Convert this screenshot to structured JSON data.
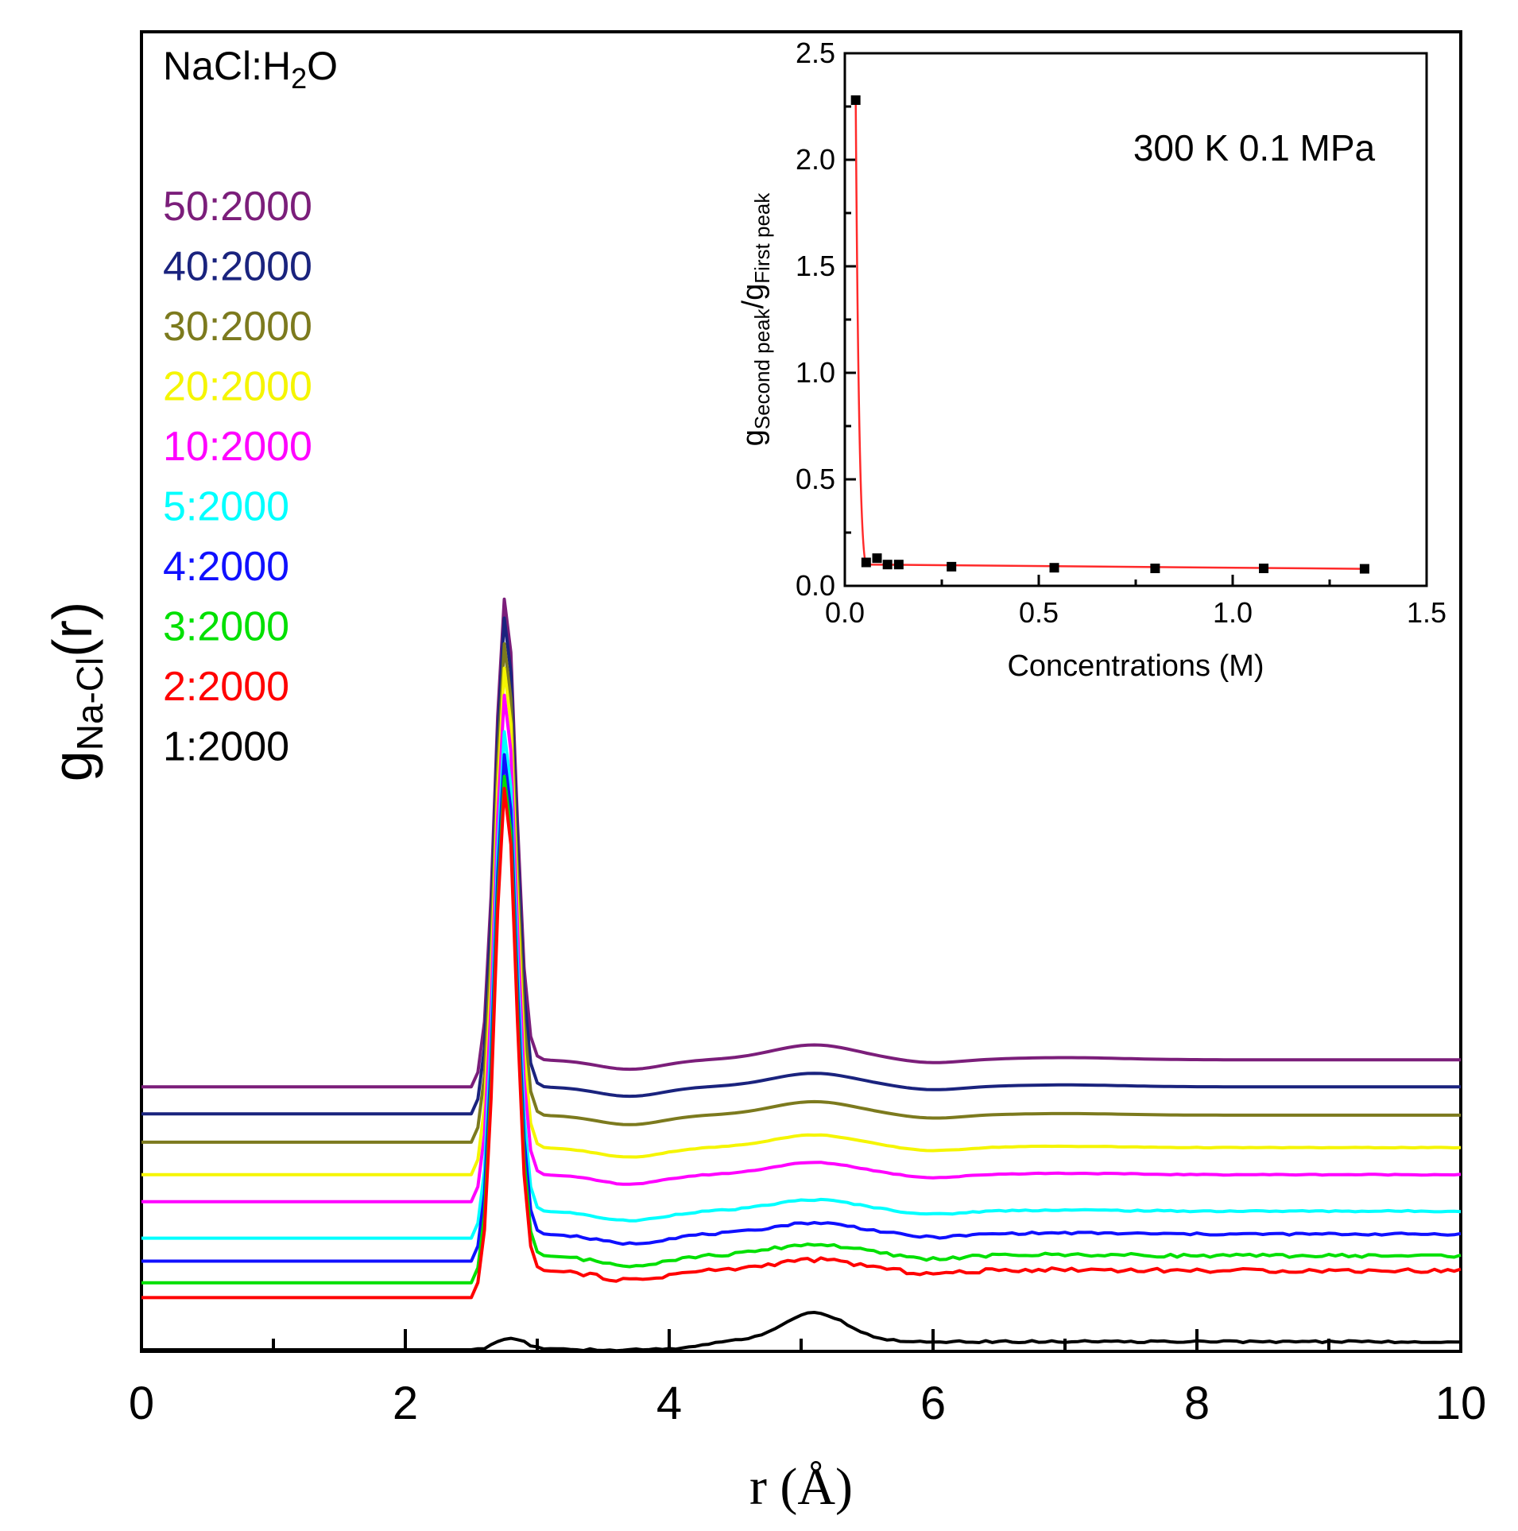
{
  "chart_data": [
    {
      "type": "line",
      "title": "",
      "xlabel": "r (Å)",
      "ylabel": {
        "main": "g",
        "sub": "Na-Cl",
        "tail": "(r)"
      },
      "xlim": [
        0,
        10
      ],
      "x_ticks": [
        "0",
        "2",
        "4",
        "6",
        "8",
        "10"
      ],
      "y_ticks_labeled": false,
      "stacked_offset_curves": true,
      "grid": false,
      "legend": {
        "title": {
          "pre": "NaCl:H",
          "sub": "2",
          "post": "O"
        },
        "placement": "top-left",
        "order": [
          "50:2000",
          "40:2000",
          "30:2000",
          "20:2000",
          "10:2000",
          "5:2000",
          "4:2000",
          "3:2000",
          "2:2000",
          "1:2000"
        ]
      },
      "series": [
        {
          "name": "50:2000",
          "color": "#7b1e7a",
          "offset": 9.2,
          "peak1": 17.2,
          "peak2": 1.55,
          "peak3": 1.08,
          "tail": 1.0,
          "noise": 0.0
        },
        {
          "name": "40:2000",
          "color": "#1a237e",
          "offset": 8.2,
          "peak1": 17.5,
          "peak2": 1.5,
          "peak3": 1.07,
          "tail": 1.0,
          "noise": 0.0
        },
        {
          "name": "30:2000",
          "color": "#7c7a1e",
          "offset": 7.15,
          "peak1": 17.6,
          "peak2": 1.5,
          "peak3": 1.06,
          "tail": 1.0,
          "noise": 0.0
        },
        {
          "name": "20:2000",
          "color": "#f5f500",
          "offset": 5.95,
          "peak1": 17.9,
          "peak2": 1.47,
          "peak3": 1.05,
          "tail": 1.0,
          "noise": 0.02
        },
        {
          "name": "10:2000",
          "color": "#ff00ff",
          "offset": 4.95,
          "peak1": 17.9,
          "peak2": 1.45,
          "peak3": 1.05,
          "tail": 1.0,
          "noise": 0.03
        },
        {
          "name": "5:2000",
          "color": "#00ffff",
          "offset": 3.6,
          "peak1": 17.9,
          "peak2": 1.42,
          "peak3": 1.04,
          "tail": 1.0,
          "noise": 0.05
        },
        {
          "name": "4:2000",
          "color": "#1010ff",
          "offset": 2.75,
          "peak1": 17.9,
          "peak2": 1.42,
          "peak3": 1.04,
          "tail": 1.0,
          "noise": 0.08
        },
        {
          "name": "3:2000",
          "color": "#00e000",
          "offset": 1.95,
          "peak1": 17.9,
          "peak2": 1.42,
          "peak3": 1.04,
          "tail": 1.0,
          "noise": 0.12
        },
        {
          "name": "2:2000",
          "color": "#ff0000",
          "offset": 1.4,
          "peak1": 18.0,
          "peak2": 1.4,
          "peak3": 1.04,
          "tail": 1.0,
          "noise": 0.15
        },
        {
          "name": "1:2000",
          "color": "#000000",
          "offset": 0.0,
          "peak1": 1.5,
          "peak2": 3.3,
          "peak3": 1.3,
          "tail": 1.0,
          "noise": 0.25
        }
      ],
      "data_note": "Each curve: baseline 0 for r<2.5, sharp first peak near r=2.75 Å, second hump near r=5.1 Å, third hump near r=7 Å, tail ~1; plotted with vertical offsets."
    },
    {
      "type": "scatter",
      "title": "",
      "annotation": "300 K 0.1 MPa",
      "xlabel": "Concentrations (M)",
      "ylabel": {
        "pre": "g",
        "sub1": "Second peak",
        "mid": "/g",
        "sub2": "First peak"
      },
      "xlim": [
        0.0,
        1.5
      ],
      "ylim": [
        0.0,
        2.5
      ],
      "x_ticks": [
        "0.0",
        "0.5",
        "1.0",
        "1.5"
      ],
      "y_ticks": [
        "0.0",
        "0.5",
        "1.0",
        "1.5",
        "2.0",
        "2.5"
      ],
      "x_tick_values": [
        0.0,
        0.5,
        1.0,
        1.5
      ],
      "y_tick_values": [
        0.0,
        0.5,
        1.0,
        1.5,
        2.0,
        2.5
      ],
      "points": {
        "x": [
          0.028,
          0.055,
          0.083,
          0.11,
          0.139,
          0.275,
          0.54,
          0.8,
          1.08,
          1.34
        ],
        "y": [
          2.28,
          0.11,
          0.13,
          0.1,
          0.1,
          0.09,
          0.085,
          0.082,
          0.082,
          0.08
        ]
      },
      "fit_color": "#ff2a2a",
      "marker_color": "#000000"
    }
  ]
}
